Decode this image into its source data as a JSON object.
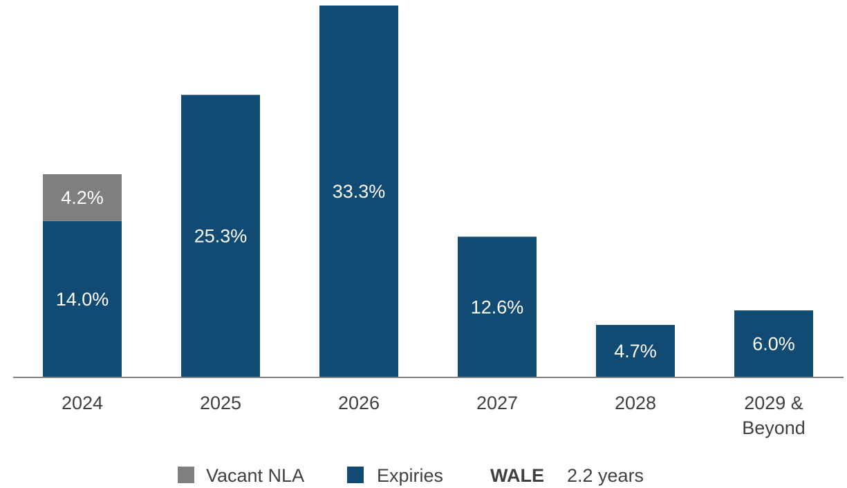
{
  "chart_data": {
    "type": "stacked_bar",
    "categories": [
      "2024",
      "2025",
      "2026",
      "2027",
      "2028",
      "2029 & Beyond"
    ],
    "series": [
      {
        "name": "Expiries",
        "color": "#114a73",
        "values": [
          14.0,
          25.3,
          33.3,
          12.6,
          4.7,
          6.0
        ],
        "value_labels": [
          "14.0%",
          "25.3%",
          "33.3%",
          "12.6%",
          "4.7%",
          "6.0%"
        ]
      },
      {
        "name": "Vacant NLA",
        "color": "#7f7f7f",
        "values": [
          4.2,
          null,
          null,
          null,
          null,
          null
        ],
        "value_labels": [
          "4.2%",
          null,
          null,
          null,
          null,
          null
        ]
      }
    ],
    "annotation": {
      "label": "WALE",
      "text": "2.2 years"
    }
  }
}
